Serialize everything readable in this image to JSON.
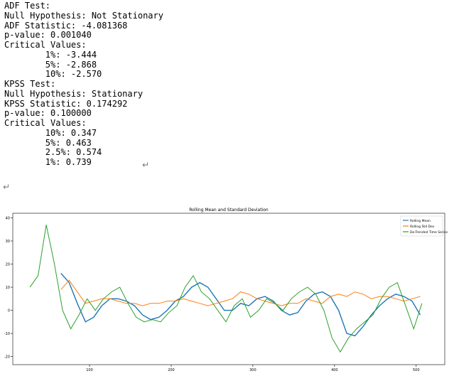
{
  "text_output": {
    "lines": [
      "ADF Test:",
      "Null Hypothesis: Not Stationary",
      "ADF Statistic: -4.081368",
      "p-value: 0.001040",
      "Critical Values:",
      "        1%: -3.444",
      "        5%: -2.868",
      "        10%: -2.570",
      "KPSS Test:",
      "Null Hypothesis: Stationary",
      "KPSS Statistic: 0.174292",
      "p-value: 0.100000",
      "Critical Values:",
      "        10%: 0.347",
      "        5%: 0.463",
      "        2.5%: 0.574",
      "        1%: 0.739"
    ],
    "marks": [
      "↵",
      "↵"
    ]
  },
  "chart_data": {
    "type": "line",
    "title": "Rolling Mean and Standard Deviation",
    "xlim": [
      6,
      535
    ],
    "ylim": [
      -23.5,
      42
    ],
    "xticks": [
      100,
      200,
      300,
      400,
      500
    ],
    "yticks": [
      -20,
      -10,
      0,
      10,
      20,
      30,
      40
    ],
    "legend": "upper right",
    "series": [
      {
        "name": "Rolling Mean",
        "color": "#1f77b4",
        "x": [
          65,
          75,
          85,
          95,
          105,
          115,
          125,
          135,
          145,
          155,
          165,
          175,
          185,
          195,
          205,
          215,
          225,
          235,
          245,
          255,
          265,
          275,
          285,
          295,
          305,
          315,
          325,
          335,
          345,
          355,
          365,
          375,
          385,
          395,
          405,
          415,
          425,
          435,
          445,
          455,
          465,
          475,
          485,
          495,
          505
        ],
        "values": [
          16,
          12,
          3,
          -5,
          -3,
          2,
          5,
          5,
          4,
          2,
          -2,
          -4,
          -3,
          0,
          4,
          6,
          10,
          12,
          10,
          5,
          0,
          0,
          3,
          2,
          5,
          6,
          4,
          0,
          -2,
          -1,
          4,
          7,
          8,
          6,
          0,
          -10,
          -11,
          -7,
          -2,
          2,
          5,
          7,
          6,
          4,
          -2
        ]
      },
      {
        "name": "Rolling Std Dev",
        "color": "#ff7f0e",
        "x": [
          65,
          75,
          85,
          95,
          105,
          115,
          125,
          135,
          145,
          155,
          165,
          175,
          185,
          195,
          205,
          215,
          225,
          235,
          245,
          255,
          265,
          275,
          285,
          295,
          305,
          315,
          325,
          335,
          345,
          355,
          365,
          375,
          385,
          395,
          405,
          415,
          425,
          435,
          445,
          455,
          465,
          475,
          485,
          495,
          505
        ],
        "values": [
          9,
          13,
          8,
          3,
          4,
          5,
          5,
          4,
          3,
          3,
          2,
          3,
          3,
          4,
          4,
          5,
          4,
          3,
          2,
          3,
          4,
          5,
          8,
          7,
          5,
          4,
          3,
          2,
          3,
          3,
          5,
          4,
          3,
          6,
          7,
          6,
          8,
          7,
          5,
          6,
          6,
          5,
          4,
          5,
          6
        ]
      },
      {
        "name": "De-Trended Time Series",
        "color": "#2ca02c",
        "x": [
          27,
          37,
          47,
          57,
          67,
          77,
          87,
          97,
          107,
          117,
          127,
          137,
          147,
          157,
          167,
          177,
          187,
          197,
          207,
          217,
          227,
          237,
          247,
          257,
          267,
          277,
          287,
          297,
          307,
          317,
          327,
          337,
          347,
          357,
          367,
          377,
          387,
          397,
          407,
          417,
          427,
          437,
          447,
          457,
          467,
          477,
          487,
          497,
          507
        ],
        "values": [
          10,
          15,
          37,
          20,
          0,
          -8,
          -2,
          5,
          0,
          5,
          8,
          10,
          3,
          -3,
          -5,
          -4,
          -5,
          -1,
          2,
          10,
          15,
          8,
          5,
          0,
          -5,
          2,
          5,
          -3,
          0,
          5,
          3,
          0,
          5,
          8,
          10,
          7,
          0,
          -12,
          -18,
          -12,
          -8,
          -5,
          -2,
          5,
          10,
          12,
          2,
          -8,
          3
        ]
      }
    ]
  }
}
